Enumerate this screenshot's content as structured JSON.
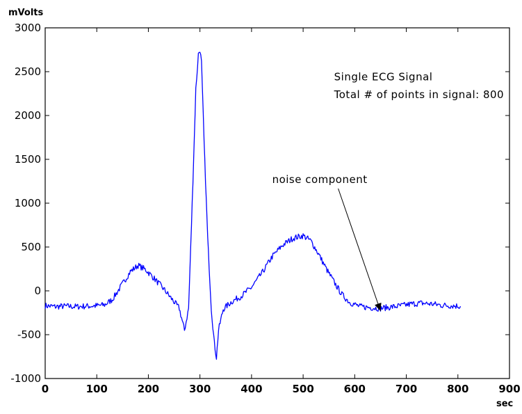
{
  "chart_data": {
    "type": "line",
    "title": "",
    "xlabel": "sec",
    "ylabel": "mVolts",
    "xlim": [
      0,
      900
    ],
    "ylim": [
      -1000,
      3000
    ],
    "x_ticks": [
      0,
      100,
      200,
      300,
      400,
      500,
      600,
      700,
      800,
      900
    ],
    "y_ticks": [
      3000,
      2500,
      2000,
      1500,
      1000,
      500,
      0,
      -500,
      -1000
    ],
    "grid": false,
    "series": [
      {
        "color": "#0000ff",
        "x": [
          0,
          20,
          40,
          60,
          80,
          100,
          115,
          130,
          150,
          165,
          180,
          195,
          210,
          230,
          245,
          260,
          270,
          278,
          285,
          292,
          297,
          300,
          303,
          308,
          315,
          322,
          328,
          332,
          336,
          345,
          360,
          380,
          400,
          420,
          440,
          460,
          480,
          500,
          515,
          530,
          545,
          560,
          575,
          590,
          610,
          630,
          650,
          670,
          690,
          710,
          730,
          750,
          770,
          790,
          805
        ],
        "y": [
          -170,
          -180,
          -175,
          -180,
          -175,
          -170,
          -160,
          -100,
          80,
          220,
          290,
          240,
          150,
          20,
          -90,
          -200,
          -450,
          -200,
          1000,
          2300,
          2700,
          2750,
          2600,
          1700,
          600,
          -200,
          -600,
          -760,
          -450,
          -210,
          -130,
          -60,
          40,
          200,
          390,
          520,
          600,
          630,
          570,
          420,
          250,
          100,
          -40,
          -130,
          -180,
          -190,
          -200,
          -185,
          -170,
          -150,
          -140,
          -150,
          -165,
          -170,
          -175
        ]
      }
    ],
    "annotations": [
      {
        "text": "Single ECG Signal",
        "x": 560,
        "y": 2400
      },
      {
        "text": "Total # of points in signal: 800",
        "x": 560,
        "y": 2200
      },
      {
        "text": "noise component",
        "x": 440,
        "y": 1230,
        "arrow_to": [
          650,
          -230
        ]
      }
    ]
  }
}
